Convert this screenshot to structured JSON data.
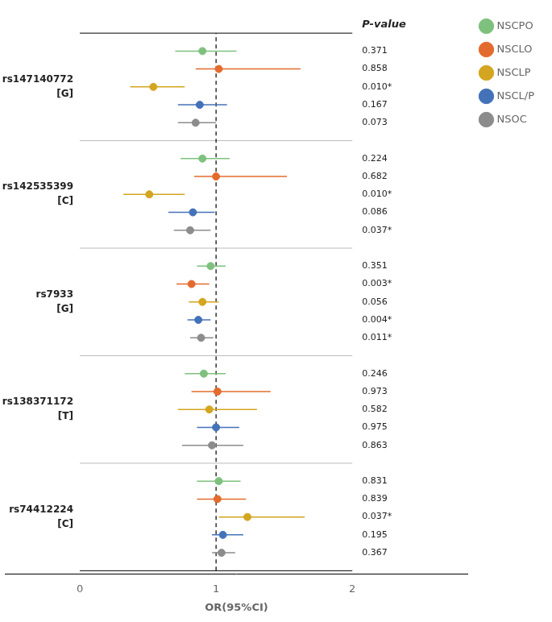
{
  "chart_data": {
    "type": "forest",
    "xlabel": "OR(95%CI)",
    "p_value_label": "P-value",
    "categories": [
      "rs147140772",
      "rs142535399",
      "rs7933",
      "rs138371172",
      "rs74412224"
    ],
    "alleles": [
      "[G]",
      "[C]",
      "[G]",
      "[T]",
      "[C]"
    ],
    "series": [
      {
        "name": "NSCPO",
        "color": "#7ec17e",
        "values": [
          0.9,
          0.9,
          0.96,
          0.91,
          1.02
        ],
        "ci_lo": [
          0.7,
          0.74,
          0.86,
          0.77,
          0.86
        ],
        "ci_hi": [
          1.15,
          1.1,
          1.07,
          1.07,
          1.18
        ],
        "p_values": [
          "0.371",
          "0.224",
          "0.351",
          "0.246",
          "0.831"
        ]
      },
      {
        "name": "NSCLO",
        "color": "#e36b2d",
        "values": [
          1.02,
          1.0,
          0.82,
          1.01,
          1.01
        ],
        "ci_lo": [
          0.85,
          0.84,
          0.71,
          0.82,
          0.86
        ],
        "ci_hi": [
          1.62,
          1.52,
          0.95,
          1.4,
          1.22
        ],
        "p_values": [
          "0.858",
          "0.682",
          "0.003*",
          "0.973",
          "0.839"
        ]
      },
      {
        "name": "NSCLP",
        "color": "#d4a520",
        "values": [
          0.54,
          0.51,
          0.9,
          0.95,
          1.23
        ],
        "ci_lo": [
          0.37,
          0.32,
          0.8,
          0.72,
          1.02
        ],
        "ci_hi": [
          0.77,
          0.77,
          1.02,
          1.3,
          1.65
        ],
        "p_values": [
          "0.010*",
          "0.010*",
          "0.056",
          "0.582",
          "0.037*"
        ]
      },
      {
        "name": "NSCL/P",
        "color": "#4472b8",
        "values": [
          0.88,
          0.83,
          0.87,
          1.0,
          1.05
        ],
        "ci_lo": [
          0.72,
          0.65,
          0.79,
          0.86,
          0.97
        ],
        "ci_hi": [
          1.08,
          0.99,
          0.96,
          1.17,
          1.2
        ],
        "p_values": [
          "0.167",
          "0.086",
          "0.004*",
          "0.975",
          "0.195"
        ]
      },
      {
        "name": "NSOC",
        "color": "#8c8c8c",
        "values": [
          0.85,
          0.81,
          0.89,
          0.97,
          1.04
        ],
        "ci_lo": [
          0.72,
          0.69,
          0.81,
          0.75,
          0.97
        ],
        "ci_hi": [
          1.0,
          0.96,
          0.98,
          1.2,
          1.14
        ],
        "p_values": [
          "0.073",
          "0.037*",
          "0.011*",
          "0.863",
          "0.367"
        ]
      }
    ],
    "reference_x": 1.0,
    "xlim": [
      -0.55,
      2.85
    ],
    "xticks": [
      0,
      1,
      2
    ],
    "grid": false,
    "legend": "right",
    "tick_labels": "x"
  }
}
